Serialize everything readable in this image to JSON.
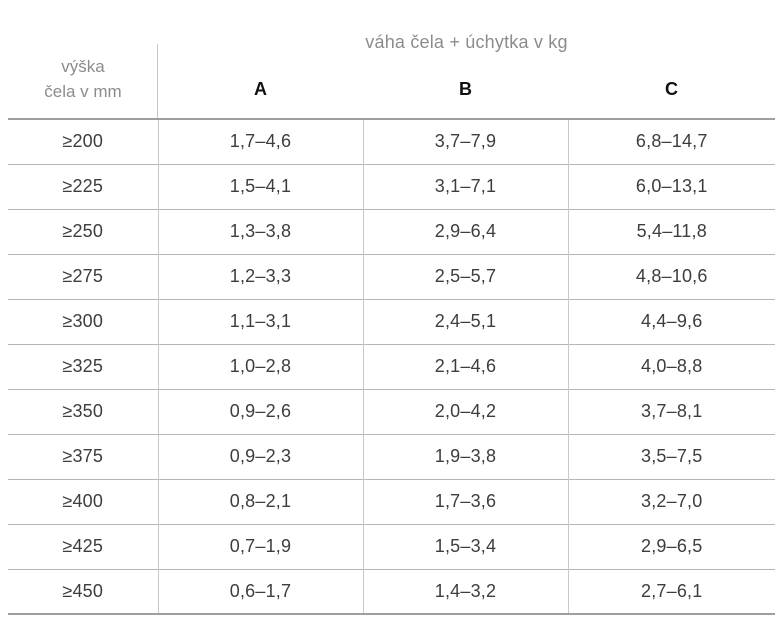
{
  "table": {
    "title": "váha čela + úchytka v kg",
    "row_header": {
      "line1": "výška",
      "line2": "čela v mm"
    },
    "columns": [
      "A",
      "B",
      "C"
    ],
    "rows": [
      {
        "height": "≥200",
        "a": "1,7–4,6",
        "b": "3,7–7,9",
        "c": "6,8–14,7"
      },
      {
        "height": "≥225",
        "a": "1,5–4,1",
        "b": "3,1–7,1",
        "c": "6,0–13,1"
      },
      {
        "height": "≥250",
        "a": "1,3–3,8",
        "b": "2,9–6,4",
        "c": "5,4–11,8"
      },
      {
        "height": "≥275",
        "a": "1,2–3,3",
        "b": "2,5–5,7",
        "c": "4,8–10,6"
      },
      {
        "height": "≥300",
        "a": "1,1–3,1",
        "b": "2,4–5,1",
        "c": "4,4–9,6"
      },
      {
        "height": "≥325",
        "a": "1,0–2,8",
        "b": "2,1–4,6",
        "c": "4,0–8,8"
      },
      {
        "height": "≥350",
        "a": "0,9–2,6",
        "b": "2,0–4,2",
        "c": "3,7–8,1"
      },
      {
        "height": "≥375",
        "a": "0,9–2,3",
        "b": "1,9–3,8",
        "c": "3,5–7,5"
      },
      {
        "height": "≥400",
        "a": "0,8–2,1",
        "b": "1,7–3,6",
        "c": "3,2–7,0"
      },
      {
        "height": "≥425",
        "a": "0,7–1,9",
        "b": "1,5–3,4",
        "c": "2,9–6,5"
      },
      {
        "height": "≥450",
        "a": "0,6–1,7",
        "b": "1,4–3,2",
        "c": "2,7–6,1"
      }
    ]
  }
}
